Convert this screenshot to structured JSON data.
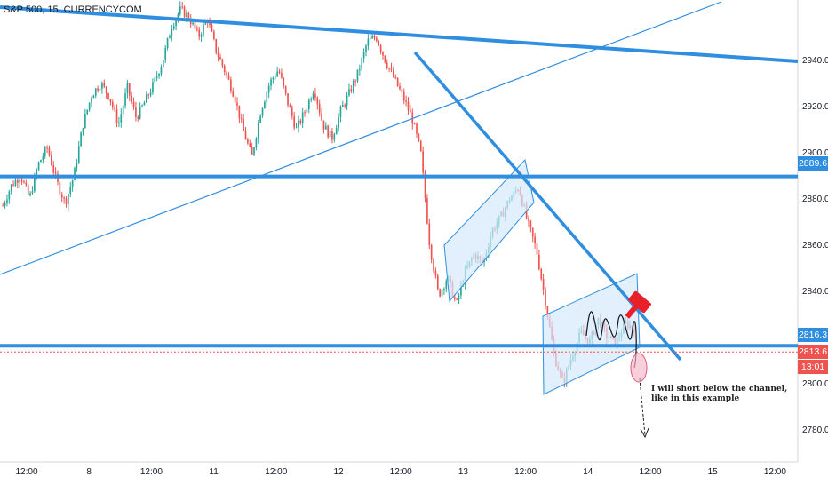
{
  "header": {
    "symbol_title": "S&P 500, 15, CURRENCYCOM"
  },
  "chart_data": {
    "type": "candlestick",
    "ylim": [
      2766,
      2966
    ],
    "y_ticks": [
      "2940.0",
      "2920.0",
      "2900.0",
      "2880.0",
      "2860.0",
      "2840.0",
      "2820.0",
      "2800.0",
      "2780.0"
    ],
    "x_ticks": [
      "12:00",
      "8",
      "12:00",
      "11",
      "12:00",
      "12",
      "12:00",
      "13",
      "12:00",
      "14",
      "12:00",
      "15",
      "12:00"
    ],
    "price_badges": {
      "level_upper": "2889.6",
      "level_lower": "2816.3",
      "last_price": "2813.6",
      "countdown": "13:01"
    },
    "horizontal_levels": [
      2889.6,
      2816.3
    ],
    "last_price_value": 2813.6,
    "price_path": [
      2877,
      2886,
      2890,
      2880,
      2895,
      2902,
      2888,
      2878,
      2890,
      2912,
      2925,
      2930,
      2924,
      2912,
      2928,
      2915,
      2922,
      2930,
      2940,
      2955,
      2962,
      2958,
      2950,
      2958,
      2944,
      2935,
      2925,
      2910,
      2898,
      2918,
      2930,
      2936,
      2922,
      2910,
      2918,
      2928,
      2912,
      2906,
      2918,
      2926,
      2935,
      2948,
      2950,
      2940,
      2932,
      2924,
      2915,
      2900,
      2860,
      2838,
      2846,
      2834,
      2848,
      2856,
      2852,
      2866,
      2872,
      2880,
      2885,
      2870,
      2858,
      2836,
      2812,
      2800,
      2812,
      2822,
      2818,
      2828,
      2820,
      2818,
      2826,
      2824
    ],
    "projection_label": "I will short below the channel,\nlike in this example",
    "colors": {
      "up": "#26a69a",
      "down": "#ef5350",
      "trendline": "#2f8ee0",
      "channel_fill": "#d6e8fb",
      "last_price": "#ef5350",
      "axis_text": "#131722"
    }
  }
}
